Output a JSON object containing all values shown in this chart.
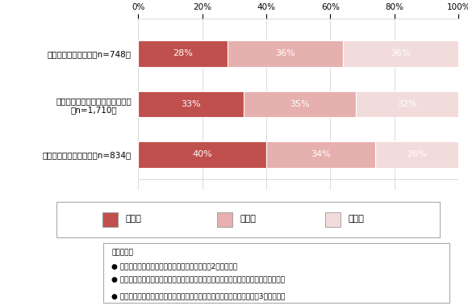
{
  "categories": [
    "無料放送のみ視聴者（n=748）",
    "無料放送＋無料ネット動画視聴者\n（n=1,710）",
    "有料ネット動画視聴者（n=834）"
  ],
  "series": [
    {
      "name": "同調派",
      "values": [
        28,
        33,
        40
      ],
      "color": "#c0504d"
    },
    {
      "name": "中間派",
      "values": [
        36,
        35,
        34
      ],
      "color": "#e6b0ae"
    },
    {
      "name": "個性派",
      "values": [
        36,
        32,
        26
      ],
      "color": "#f2dcdb"
    }
  ],
  "xlim": [
    0,
    100
  ],
  "xticks": [
    0,
    20,
    40,
    60,
    80,
    100
  ],
  "xticklabels": [
    "0%",
    "20%",
    "40%",
    "60%",
    "80%",
    "100%"
  ],
  "bar_edge_color": "#ffffff",
  "grid_color": "#cccccc",
  "text_color": "#000000",
  "note_title": "【考え方】",
  "note_bullets": [
    "● 流行採用の際の動機「個性化－同調」度を測る2設問を設定",
    "● 各回答について、得点が高くなるほど個性派、低くなるほど同調派となるよう得点化",
    "● 得点状況より、個性化－同調レベルが均等に分布するよう、得点を元に3段階に分類"
  ],
  "pct_label_fontsize": 8,
  "tick_fontsize": 7.5,
  "ylabel_fontsize": 7.5,
  "legend_fontsize": 8,
  "note_fontsize": 6.5,
  "bar_height": 0.52
}
